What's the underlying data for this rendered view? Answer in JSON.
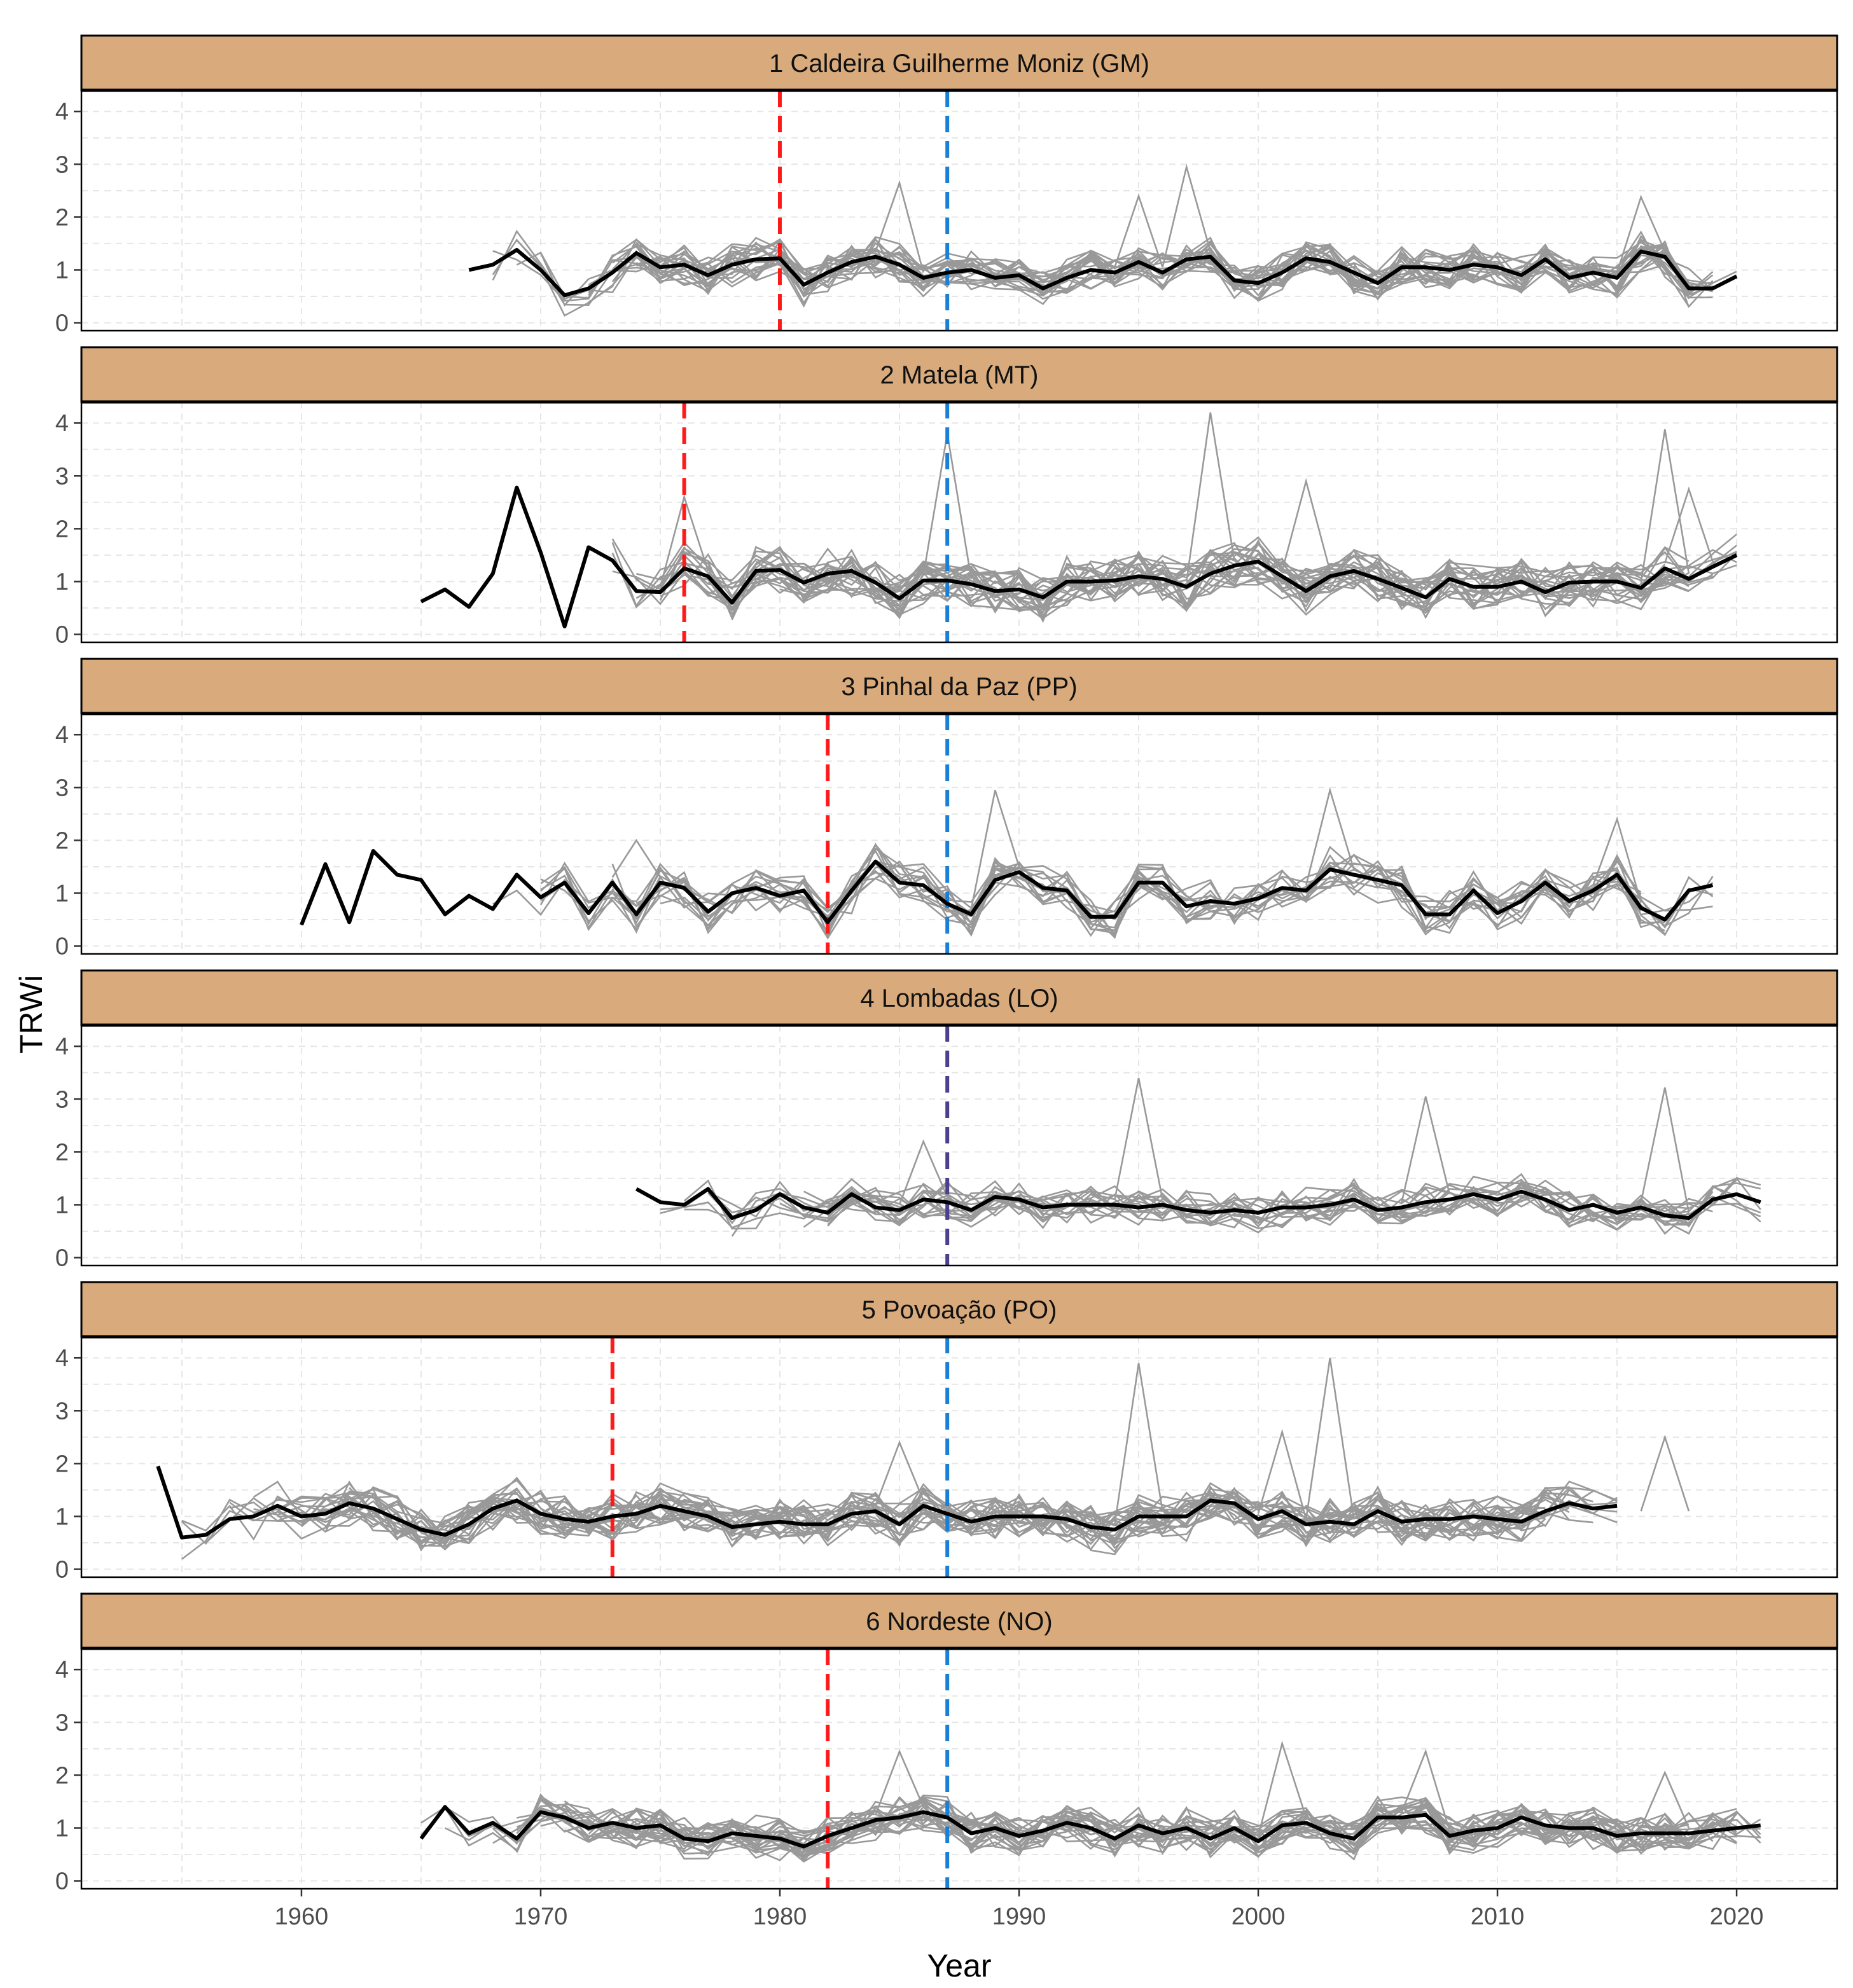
{
  "chart_data": {
    "type": "line",
    "xlabel": "Year",
    "ylabel": "TRWi",
    "xlim": [
      1950.8,
      2024.2
    ],
    "ylim": [
      -0.15,
      4.4
    ],
    "xticks": [
      1960,
      1970,
      1980,
      1990,
      2000,
      2010,
      2020
    ],
    "yticks": [
      0,
      1,
      2,
      3,
      4
    ],
    "grid": true,
    "colors": {
      "strip_fill": "#d9ab7c",
      "chronology": "#000000",
      "series": "#999999",
      "red_line": "#ff1a1a",
      "blue_line": "#1a7fd6",
      "purple_line": "#4b3f8f",
      "grid": "#e6e6e6"
    },
    "panels": [
      {
        "title": "1 Caldeira Guilherme Moniz (GM)",
        "start": 1967,
        "chronology": [
          1.0,
          1.1,
          1.38,
          1.0,
          0.52,
          0.65,
          0.95,
          1.32,
          1.05,
          1.1,
          0.9,
          1.1,
          1.2,
          1.22,
          0.72,
          0.95,
          1.15,
          1.25,
          1.1,
          0.85,
          0.95,
          1.0,
          0.85,
          0.9,
          0.65,
          0.85,
          1.0,
          0.95,
          1.15,
          0.95,
          1.2,
          1.25,
          0.8,
          0.75,
          0.95,
          1.22,
          1.15,
          0.95,
          0.75,
          1.05,
          1.05,
          1.0,
          1.1,
          1.05,
          0.9,
          1.2,
          0.85,
          0.95,
          0.85,
          1.35,
          1.25,
          0.65,
          0.65,
          0.88
        ],
        "series_start": 1968,
        "series_count": 22,
        "spread": 0.32,
        "spikes": [
          [
            1985,
            2.65
          ],
          [
            1997,
            2.95
          ],
          [
            1995,
            2.4
          ],
          [
            2016,
            2.38
          ]
        ],
        "vlines": [
          {
            "year": 1980,
            "color": "red"
          },
          {
            "year": 1987,
            "color": "blue"
          }
        ]
      },
      {
        "title": "2 Matela (MT)",
        "start": 1965,
        "chronology": [
          0.62,
          0.85,
          0.52,
          1.15,
          2.78,
          1.55,
          0.15,
          1.65,
          1.4,
          0.82,
          0.8,
          1.25,
          1.1,
          0.6,
          1.2,
          1.22,
          0.98,
          1.15,
          1.2,
          0.98,
          0.68,
          1.02,
          1.02,
          0.95,
          0.82,
          0.85,
          0.7,
          1.0,
          1.0,
          1.02,
          1.1,
          1.05,
          0.9,
          1.15,
          1.3,
          1.38,
          1.1,
          0.82,
          1.1,
          1.2,
          1.05,
          0.88,
          0.7,
          1.05,
          0.9,
          0.9,
          1.0,
          0.8,
          0.98,
          1.0,
          1.0,
          0.88,
          1.25,
          1.05,
          1.28,
          1.5
        ],
        "series_start": 1973,
        "series_count": 24,
        "spread": 0.4,
        "spikes": [
          [
            1987,
            3.8
          ],
          [
            1998,
            4.2
          ],
          [
            2002,
            2.9
          ],
          [
            2017,
            3.88
          ],
          [
            1976,
            2.6
          ],
          [
            2018,
            2.75
          ]
        ],
        "vlines": [
          {
            "year": 1976,
            "color": "red"
          },
          {
            "year": 1987,
            "color": "blue"
          }
        ]
      },
      {
        "title": "3 Pinhal da Paz (PP)",
        "start": 1960,
        "chronology": [
          0.4,
          1.55,
          0.45,
          1.8,
          1.35,
          1.25,
          0.6,
          0.95,
          0.7,
          1.35,
          0.92,
          1.2,
          0.62,
          1.2,
          0.6,
          1.2,
          1.1,
          0.65,
          1.0,
          1.1,
          0.95,
          1.05,
          0.45,
          1.05,
          1.6,
          1.2,
          1.15,
          0.8,
          0.6,
          1.25,
          1.4,
          1.1,
          1.05,
          0.55,
          0.55,
          1.2,
          1.2,
          0.75,
          0.85,
          0.8,
          0.9,
          1.1,
          1.05,
          1.45,
          1.35,
          1.25,
          1.15,
          0.6,
          0.6,
          1.05,
          0.62,
          0.85,
          1.2,
          0.85,
          1.05,
          1.35,
          0.72,
          0.5,
          1.05,
          1.15
        ],
        "series_start": 1968,
        "series_count": 14,
        "spread": 0.35,
        "spikes": [
          [
            1989,
            2.95
          ],
          [
            2003,
            2.95
          ],
          [
            2015,
            2.4
          ],
          [
            1974,
            2.0
          ]
        ],
        "vlines": [
          {
            "year": 1982,
            "color": "red"
          },
          {
            "year": 1987,
            "color": "blue"
          }
        ]
      },
      {
        "title": "4 Lombadas (LO)",
        "start": 1974,
        "chronology": [
          1.3,
          1.05,
          1.0,
          1.3,
          0.75,
          0.9,
          1.2,
          0.95,
          0.85,
          1.2,
          0.95,
          0.9,
          1.1,
          1.05,
          0.9,
          1.15,
          1.1,
          0.95,
          1.0,
          1.0,
          1.0,
          0.95,
          1.0,
          0.9,
          0.85,
          0.9,
          0.85,
          0.95,
          0.95,
          1.0,
          1.1,
          0.9,
          0.95,
          1.05,
          1.1,
          1.2,
          1.1,
          1.25,
          1.1,
          0.9,
          1.0,
          0.85,
          0.95,
          0.8,
          0.75,
          1.1,
          1.2,
          1.05
        ],
        "series_start": 1975,
        "series_count": 16,
        "spread": 0.3,
        "spikes": [
          [
            1995,
            3.4
          ],
          [
            2007,
            3.05
          ],
          [
            2017,
            3.22
          ],
          [
            1986,
            2.2
          ]
        ],
        "vlines": [
          {
            "year": 1987,
            "color": "purple"
          }
        ]
      },
      {
        "title": "5 Povoação (PO)",
        "start": 1954,
        "chronology": [
          1.95,
          0.6,
          0.65,
          0.95,
          1.0,
          1.2,
          1.0,
          1.05,
          1.25,
          1.15,
          0.95,
          0.75,
          0.65,
          0.85,
          1.15,
          1.3,
          1.05,
          0.95,
          0.9,
          1.0,
          1.05,
          1.2,
          1.1,
          1.0,
          0.8,
          0.85,
          0.9,
          0.85,
          0.85,
          1.05,
          1.1,
          0.85,
          1.2,
          1.05,
          0.9,
          1.0,
          1.0,
          1.0,
          0.95,
          0.8,
          0.75,
          1.0,
          1.0,
          1.0,
          1.3,
          1.25,
          0.95,
          1.1,
          0.85,
          0.9,
          0.85,
          1.1,
          0.9,
          0.95,
          0.95,
          1.0,
          0.95,
          0.9,
          1.1,
          1.25,
          1.15,
          1.2
        ],
        "series_start": 1955,
        "series_count": 24,
        "spread": 0.38,
        "spikes": [
          [
            1995,
            3.9
          ],
          [
            2003,
            4.0
          ],
          [
            2001,
            2.6
          ],
          [
            1985,
            2.4
          ],
          [
            2017,
            2.5
          ]
        ],
        "vlines": [
          {
            "year": 1973,
            "color": "red"
          },
          {
            "year": 1987,
            "color": "blue"
          }
        ]
      },
      {
        "title": "6 Nordeste (NO)",
        "start": 1965,
        "chronology": [
          0.8,
          1.4,
          0.9,
          1.1,
          0.8,
          1.3,
          1.2,
          1.0,
          1.1,
          1.0,
          1.05,
          0.8,
          0.75,
          0.9,
          0.85,
          0.8,
          0.65,
          0.85,
          1.0,
          1.15,
          1.2,
          1.3,
          1.2,
          0.9,
          1.0,
          0.85,
          0.95,
          1.1,
          1.0,
          0.8,
          1.05,
          0.9,
          1.0,
          0.8,
          1.0,
          0.75,
          1.05,
          1.1,
          0.9,
          0.8,
          1.2,
          1.2,
          1.25,
          0.85,
          0.95,
          1.0,
          1.2,
          1.05,
          1.0,
          1.0,
          0.85,
          0.9,
          0.9,
          0.9,
          0.95,
          1.0,
          1.05
        ],
        "series_start": 1965,
        "series_count": 24,
        "spread": 0.33,
        "spikes": [
          [
            1985,
            2.45
          ],
          [
            2001,
            2.6
          ],
          [
            2007,
            2.45
          ],
          [
            2017,
            2.05
          ]
        ],
        "vlines": [
          {
            "year": 1982,
            "color": "red"
          },
          {
            "year": 1987,
            "color": "blue"
          }
        ]
      }
    ]
  }
}
